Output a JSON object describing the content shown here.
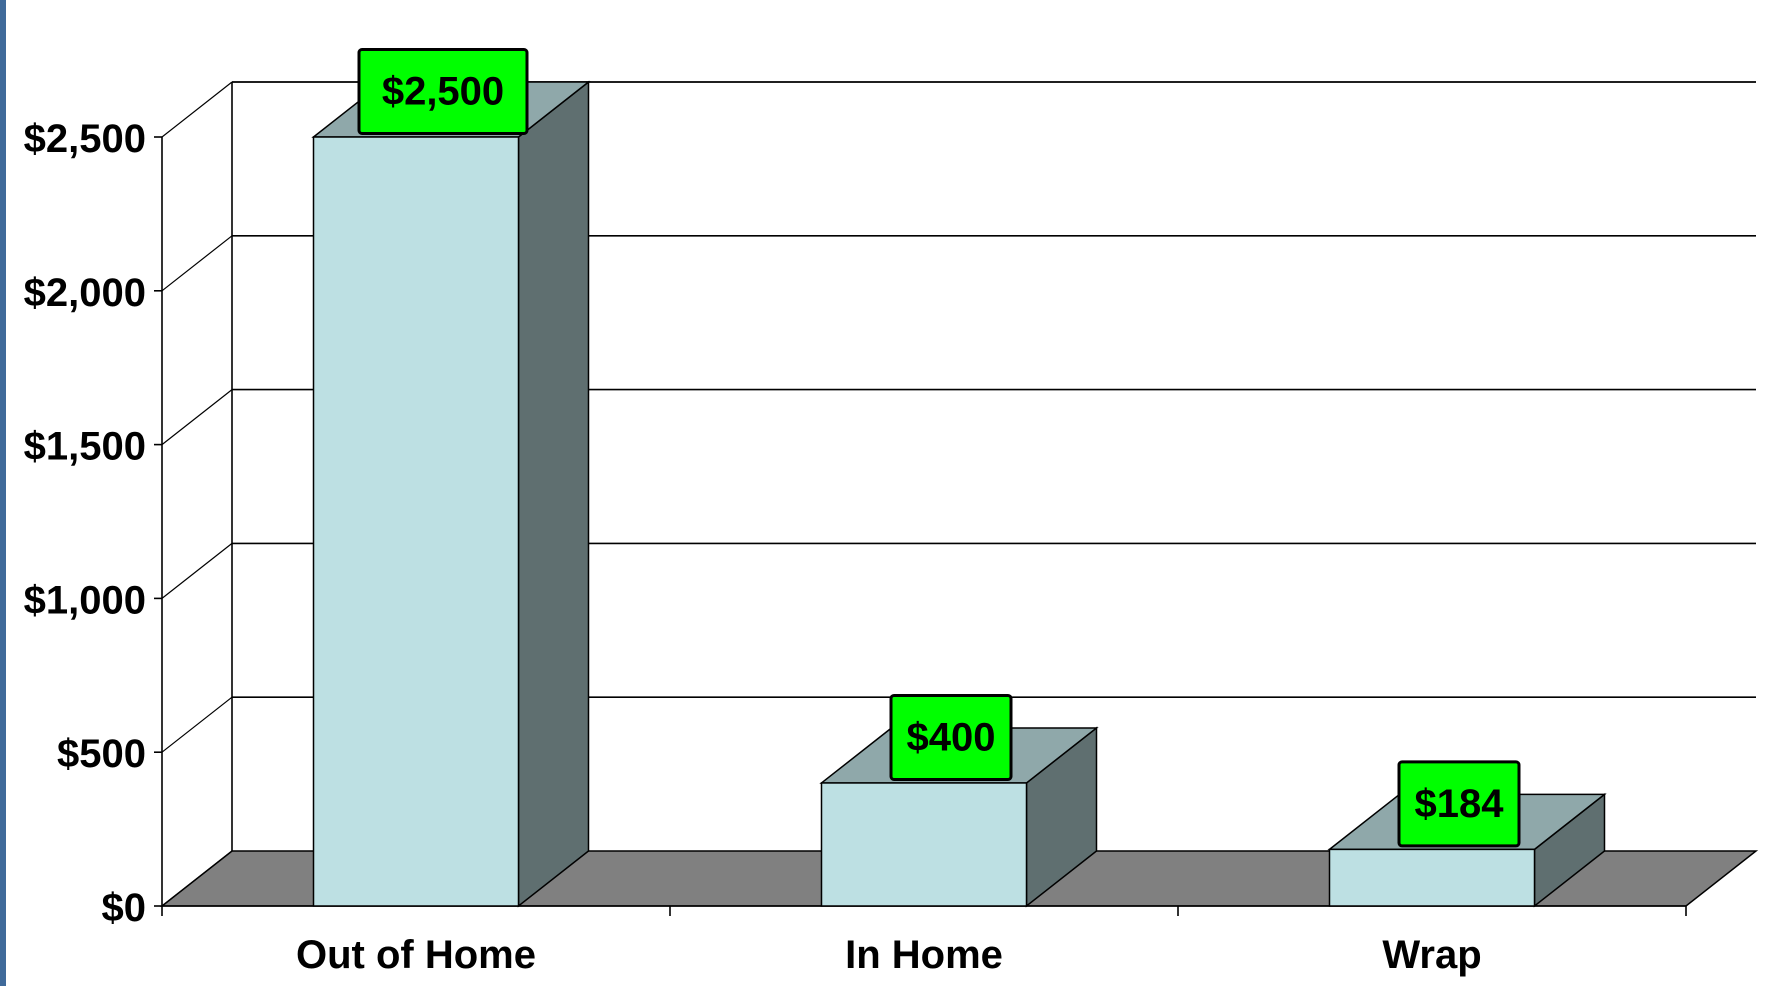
{
  "chart_data": {
    "type": "bar",
    "categories": [
      "Out of Home",
      "In Home",
      "Wrap"
    ],
    "values": [
      2500,
      400,
      184
    ],
    "data_labels": [
      "$2,500",
      "$400",
      "$184"
    ],
    "y_ticks": [
      0,
      500,
      1000,
      1500,
      2000,
      2500
    ],
    "y_tick_labels": [
      "$0",
      "$500",
      "$1,000",
      "$1,500",
      "$2,000",
      "$2,500"
    ],
    "ylim": [
      0,
      2500
    ],
    "grid": true,
    "style": "3d",
    "colors": {
      "bar_front": "#bde0e3",
      "bar_top": "#8fa8aa",
      "bar_side": "#5f6f70",
      "floor": "#808080",
      "label_bg": "#00ff00",
      "left_rule": "#3f6a9a"
    }
  }
}
